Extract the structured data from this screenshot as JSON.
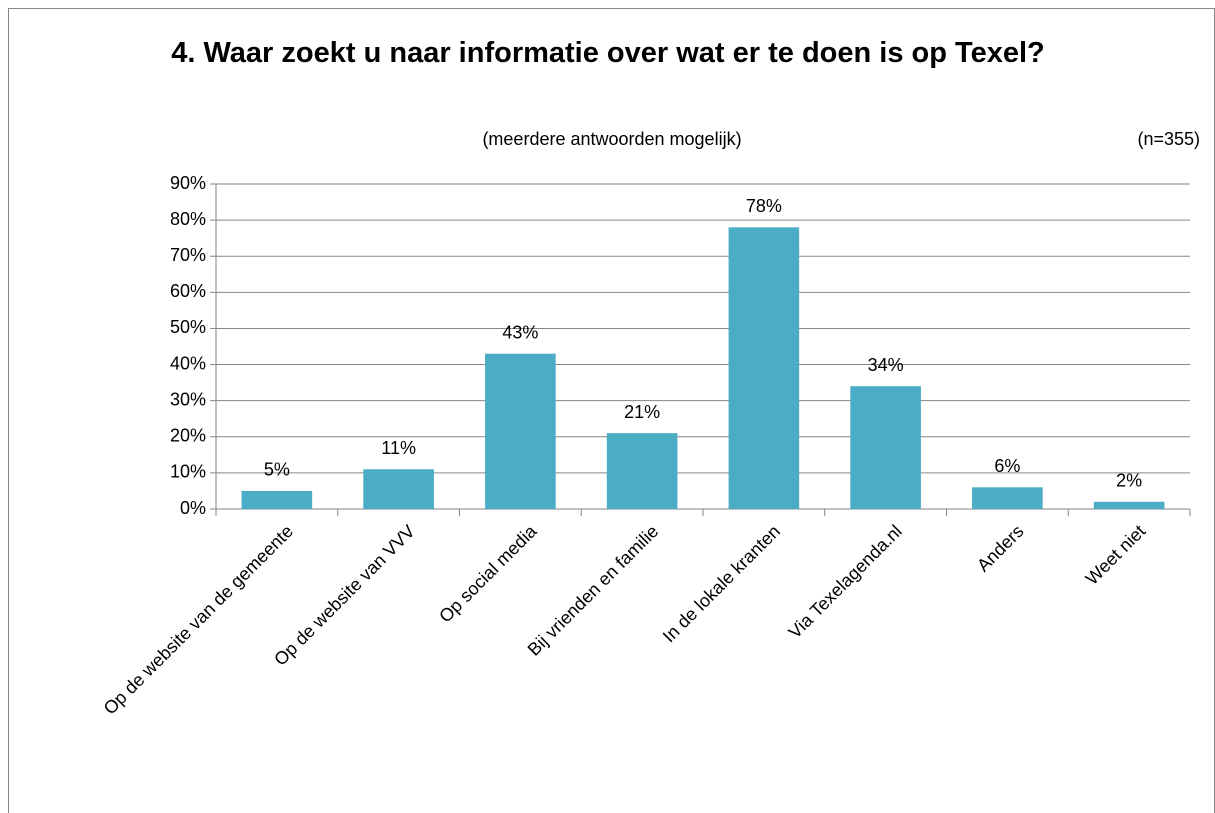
{
  "chart_data": {
    "type": "bar",
    "title": "4. Waar zoekt u naar informatie over wat er te doen is op Texel?",
    "subtitle": "(meerdere antwoorden mogelijk)",
    "annotation": "(n=355)",
    "categories": [
      "Op de website van de gemeente",
      "Op de website van VVV",
      "Op social media",
      "Bij vrienden en familie",
      "In de lokale kranten",
      "Via Texelagenda.nl",
      "Anders",
      "Weet niet"
    ],
    "values": [
      5,
      11,
      43,
      21,
      78,
      34,
      6,
      2
    ],
    "value_labels": [
      "5%",
      "11%",
      "43%",
      "21%",
      "78%",
      "34%",
      "6%",
      "2%"
    ],
    "color": "#4bacc6",
    "ylim": [
      0,
      90
    ],
    "yticks": [
      {
        "value": 0,
        "label": "0%"
      },
      {
        "value": 10,
        "label": "10%"
      },
      {
        "value": 20,
        "label": "20%"
      },
      {
        "value": 30,
        "label": "30%"
      },
      {
        "value": 40,
        "label": "40%"
      },
      {
        "value": 50,
        "label": "50%"
      },
      {
        "value": 60,
        "label": "60%"
      },
      {
        "value": 70,
        "label": "70%"
      },
      {
        "value": 80,
        "label": "80%"
      },
      {
        "value": 90,
        "label": "90%"
      }
    ],
    "grid": true
  }
}
